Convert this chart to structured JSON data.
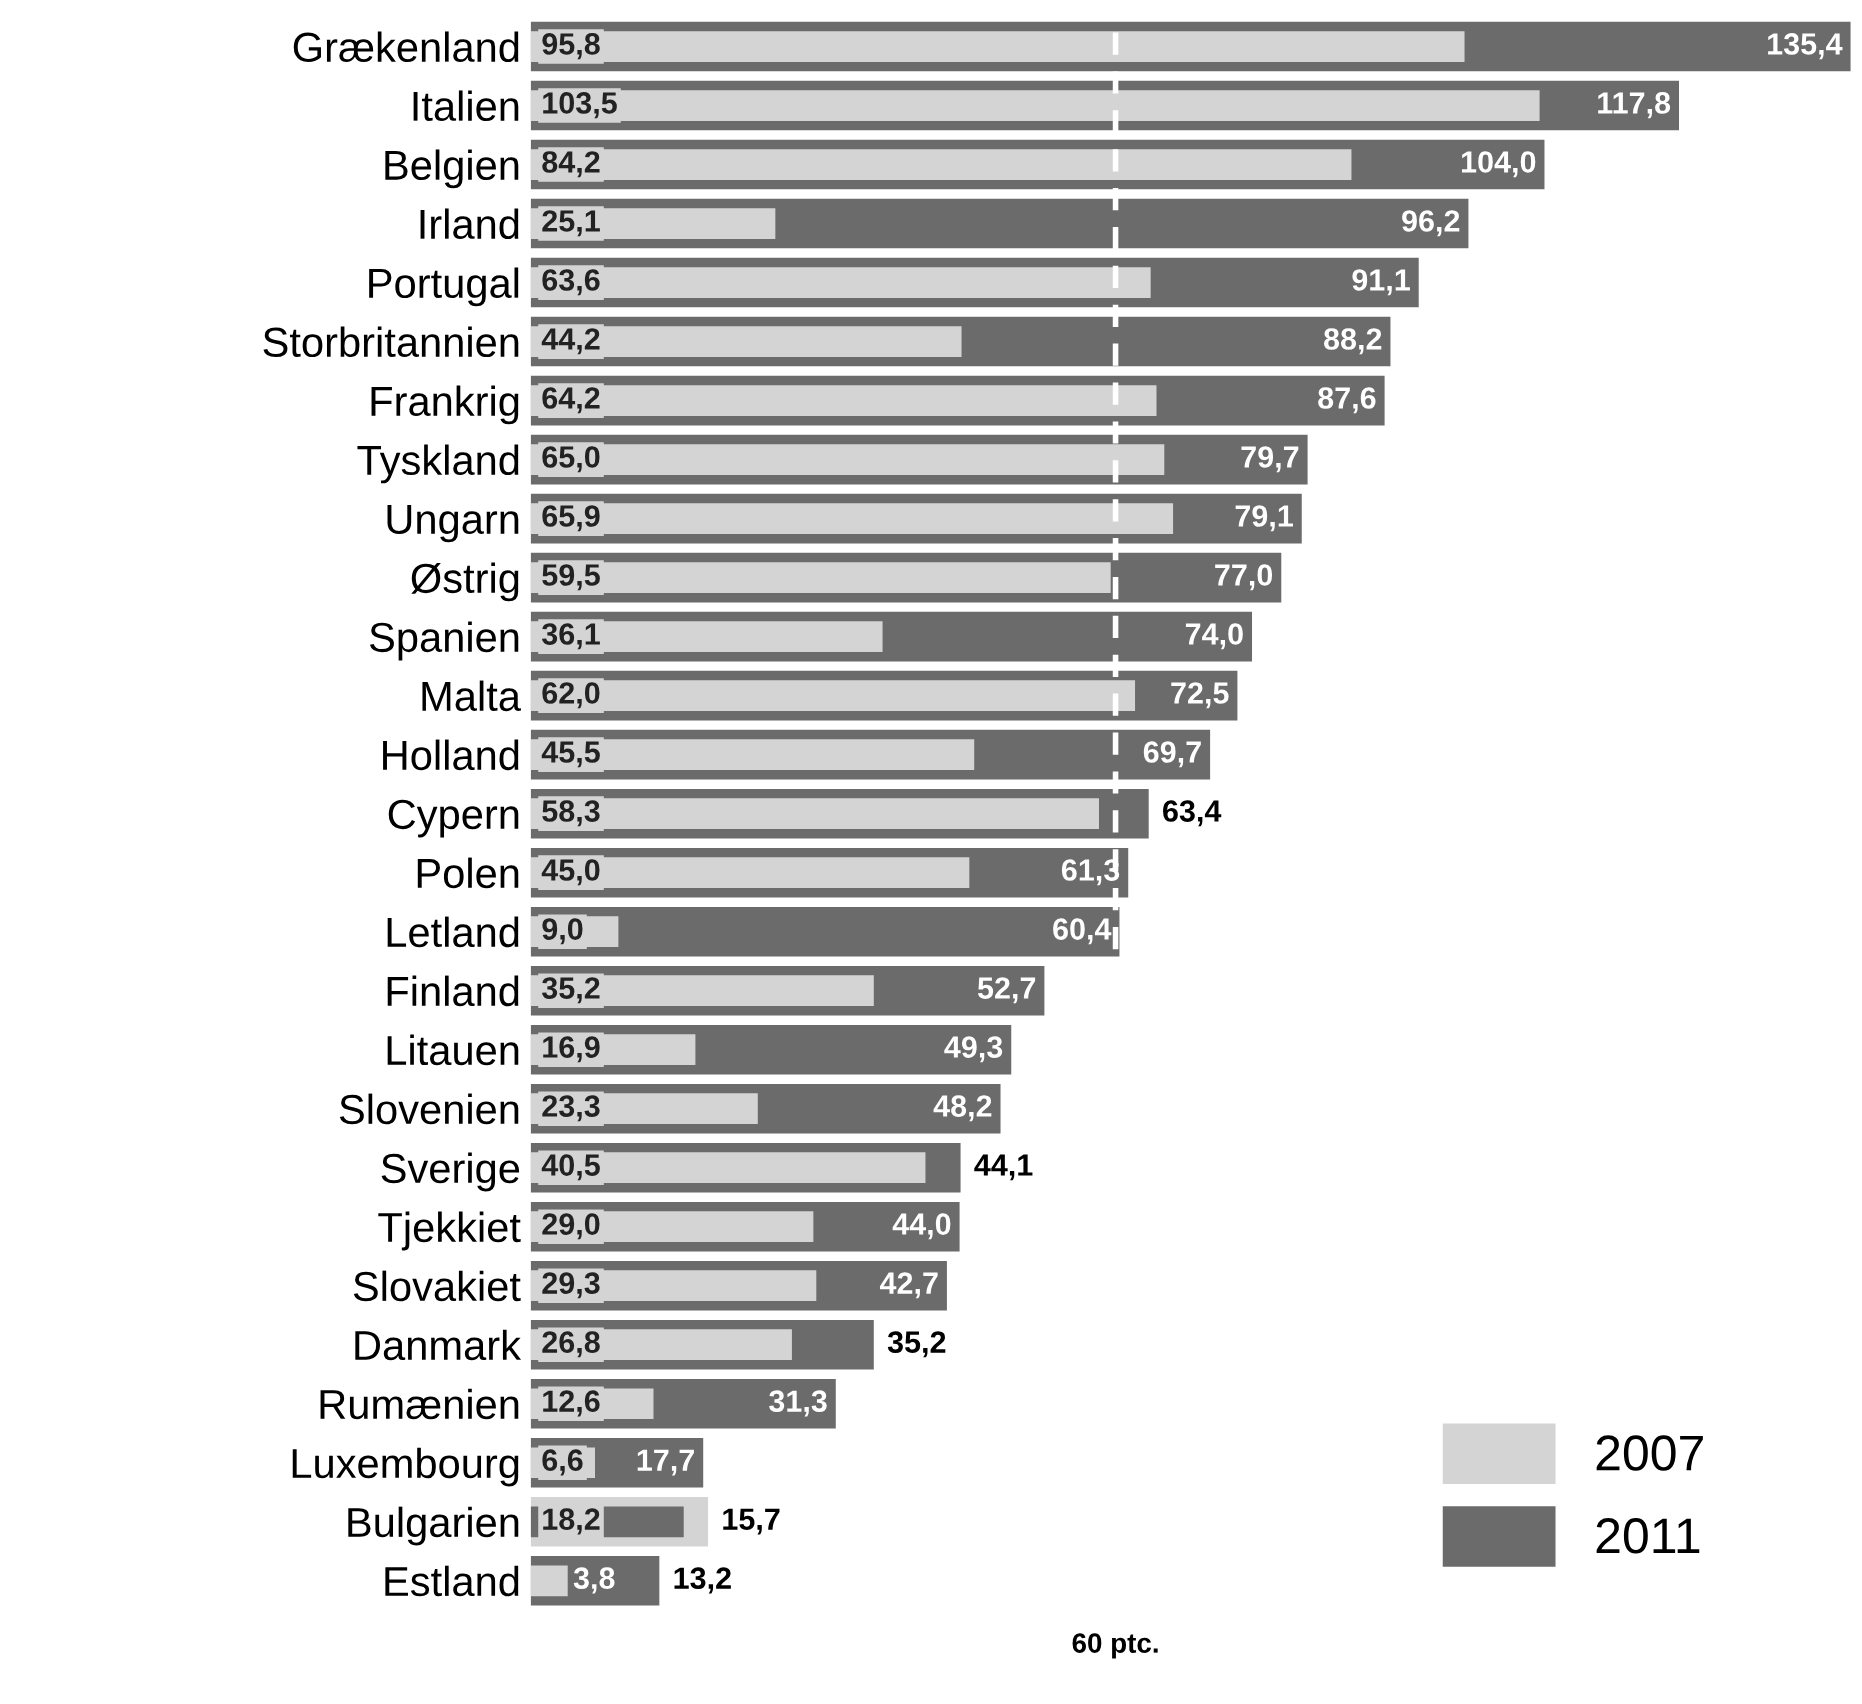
{
  "chart_data": {
    "type": "bar",
    "orientation": "horizontal",
    "categories": [
      "Grækenland",
      "Italien",
      "Belgien",
      "Irland",
      "Portugal",
      "Storbritannien",
      "Frankrig",
      "Tyskland",
      "Ungarn",
      "Østrig",
      "Spanien",
      "Malta",
      "Holland",
      "Cypern",
      "Polen",
      "Letland",
      "Finland",
      "Litauen",
      "Slovenien",
      "Sverige",
      "Tjekkiet",
      "Slovakiet",
      "Danmark",
      "Rumænien",
      "Luxembourg",
      "Bulgarien",
      "Estland"
    ],
    "series": [
      {
        "name": "2007",
        "color": "#d4d4d4",
        "values": [
          95.8,
          103.5,
          84.2,
          25.1,
          63.6,
          44.2,
          64.2,
          65.0,
          65.9,
          59.5,
          36.1,
          62.0,
          45.5,
          58.3,
          45.0,
          9.0,
          35.2,
          16.9,
          23.3,
          40.5,
          29.0,
          29.3,
          26.8,
          12.6,
          6.6,
          18.2,
          3.8
        ],
        "value_labels": [
          "95,8",
          "103,5",
          "84,2",
          "25,1",
          "63,6",
          "44,2",
          "64,2",
          "65,0",
          "65,9",
          "59,5",
          "36,1",
          "62,0",
          "45,5",
          "58,3",
          "45,0",
          "9,0",
          "35,2",
          "16,9",
          "23,3",
          "40,5",
          "29,0",
          "29,3",
          "26,8",
          "12,6",
          "6,6",
          "18,2",
          "3,8"
        ]
      },
      {
        "name": "2011",
        "color": "#6b6b6b",
        "values": [
          135.4,
          117.8,
          104.0,
          96.2,
          91.1,
          88.2,
          87.6,
          79.7,
          79.1,
          77.0,
          74.0,
          72.5,
          69.7,
          63.4,
          61.3,
          60.4,
          52.7,
          49.3,
          48.2,
          44.1,
          44.0,
          42.7,
          35.2,
          31.3,
          17.7,
          15.7,
          13.2
        ],
        "value_labels": [
          "135,4",
          "117,8",
          "104,0",
          "96,2",
          "91,1",
          "88,2",
          "87,6",
          "79,7",
          "79,1",
          "77,0",
          "74,0",
          "72,5",
          "69,7",
          "63,4",
          "61,3",
          "60,4",
          "52,7",
          "49,3",
          "48,2",
          "44,1",
          "44,0",
          "42,7",
          "35,2",
          "31,3",
          "17,7",
          "15,7",
          "13,2"
        ]
      }
    ],
    "xlim": [
      0,
      136
    ],
    "tick_labels": "y",
    "grid": false,
    "legend": "bottom right",
    "ref_lines": [
      {
        "axis": "x",
        "value": 60,
        "label": "60 ptc.",
        "color": "#ffffff",
        "line_style": "dashed"
      }
    ]
  }
}
